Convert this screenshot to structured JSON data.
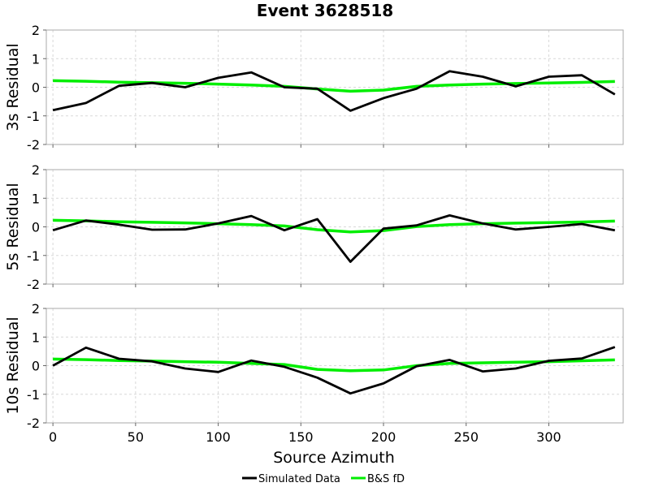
{
  "chart_data": {
    "type": "line",
    "title": "Event 3628518",
    "xlabel": "Source Azimuth",
    "xlim": [
      -4,
      345
    ],
    "x_ticks": [
      0,
      50,
      100,
      150,
      200,
      250,
      300
    ],
    "ylim": [
      -2,
      2
    ],
    "y_ticks": [
      -2,
      -1,
      0,
      1,
      2
    ],
    "grid": true,
    "legend_position": "bottom-center",
    "legend": [
      {
        "name": "Simulated Data",
        "color": "#000000"
      },
      {
        "name": "B&S fD",
        "color": "#00ee00"
      }
    ],
    "x": [
      0,
      20,
      40,
      60,
      80,
      100,
      120,
      140,
      160,
      180,
      200,
      220,
      240,
      260,
      280,
      300,
      320,
      340
    ],
    "panels": [
      {
        "ylabel": "3s Residual",
        "series": [
          {
            "name": "Simulated Data",
            "color": "#000000",
            "values": [
              -0.8,
              -0.55,
              0.05,
              0.15,
              0.0,
              0.33,
              0.52,
              0.0,
              -0.05,
              -0.82,
              -0.38,
              -0.05,
              0.56,
              0.37,
              0.03,
              0.37,
              0.42,
              -0.25
            ]
          },
          {
            "name": "B&S fD",
            "color": "#00ee00",
            "values": [
              0.23,
              0.21,
              0.18,
              0.16,
              0.14,
              0.11,
              0.08,
              0.03,
              -0.06,
              -0.14,
              -0.1,
              0.03,
              0.08,
              0.11,
              0.13,
              0.15,
              0.17,
              0.2
            ]
          }
        ]
      },
      {
        "ylabel": "5s Residual",
        "series": [
          {
            "name": "Simulated Data",
            "color": "#000000",
            "values": [
              -0.12,
              0.22,
              0.08,
              -0.1,
              -0.09,
              0.12,
              0.38,
              -0.12,
              0.27,
              -1.22,
              -0.06,
              0.05,
              0.4,
              0.12,
              -0.09,
              0.0,
              0.1,
              -0.12
            ]
          },
          {
            "name": "B&S fD",
            "color": "#00ee00",
            "values": [
              0.23,
              0.21,
              0.18,
              0.16,
              0.14,
              0.11,
              0.08,
              0.03,
              -0.1,
              -0.18,
              -0.13,
              0.01,
              0.08,
              0.11,
              0.13,
              0.15,
              0.17,
              0.2
            ]
          }
        ]
      },
      {
        "ylabel": "10s Residual",
        "series": [
          {
            "name": "Simulated Data",
            "color": "#000000",
            "values": [
              0.0,
              0.63,
              0.24,
              0.15,
              -0.1,
              -0.22,
              0.18,
              -0.04,
              -0.42,
              -0.97,
              -0.62,
              -0.02,
              0.2,
              -0.2,
              -0.1,
              0.17,
              0.25,
              0.65
            ]
          },
          {
            "name": "B&S fD",
            "color": "#00ee00",
            "values": [
              0.23,
              0.21,
              0.18,
              0.16,
              0.14,
              0.12,
              0.08,
              0.04,
              -0.13,
              -0.18,
              -0.15,
              0.0,
              0.08,
              0.1,
              0.12,
              0.14,
              0.17,
              0.2
            ]
          }
        ]
      }
    ]
  }
}
